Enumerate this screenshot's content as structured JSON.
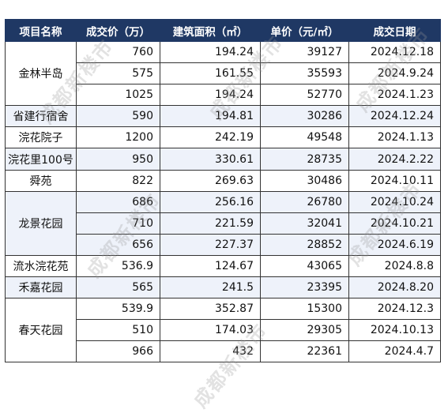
{
  "headers": [
    "项目名称",
    "成交价（万）",
    "建筑面积（㎡）",
    "单价（元/㎡）",
    "成交日期"
  ],
  "groups": [
    {
      "name": "金林半岛",
      "rows": [
        [
          "760",
          "194.24",
          "39127",
          "2024.12.18"
        ],
        [
          "575",
          "161.55",
          "35593",
          "2024.9.24"
        ],
        [
          "1025",
          "194.24",
          "52770",
          "2024.1.23"
        ]
      ]
    },
    {
      "name": "省建行宿舍",
      "rows": [
        [
          "590",
          "194.81",
          "30286",
          "2024.12.24"
        ]
      ]
    },
    {
      "name": "浣花院子",
      "rows": [
        [
          "1200",
          "242.19",
          "49548",
          "2024.1.13"
        ]
      ]
    },
    {
      "name": "浣花里100号",
      "rows": [
        [
          "950",
          "330.61",
          "28735",
          "2024.2.22"
        ]
      ]
    },
    {
      "name": "舜苑",
      "rows": [
        [
          "822",
          "269.63",
          "30486",
          "2024.10.11"
        ]
      ]
    },
    {
      "name": "龙景花园",
      "rows": [
        [
          "686",
          "256.16",
          "26780",
          "2024.10.24"
        ],
        [
          "710",
          "221.59",
          "32041",
          "2024.10.21"
        ],
        [
          "656",
          "227.37",
          "28852",
          "2024.6.19"
        ]
      ]
    },
    {
      "name": "流水浣花苑",
      "rows": [
        [
          "536.9",
          "124.67",
          "43065",
          "2024.8.8"
        ]
      ]
    },
    {
      "name": "禾嘉花园",
      "rows": [
        [
          "565",
          "241.5",
          "23395",
          "2024.8.20"
        ]
      ]
    },
    {
      "name": "春天花园",
      "rows": [
        [
          "539.9",
          "352.87",
          "15300",
          "2024.12.3"
        ],
        [
          "510",
          "174.03",
          "29305",
          "2024.10.13"
        ],
        [
          "966",
          "432",
          "22361",
          "2024.4.7"
        ]
      ]
    }
  ],
  "watermark_text": "成都新楼市"
}
